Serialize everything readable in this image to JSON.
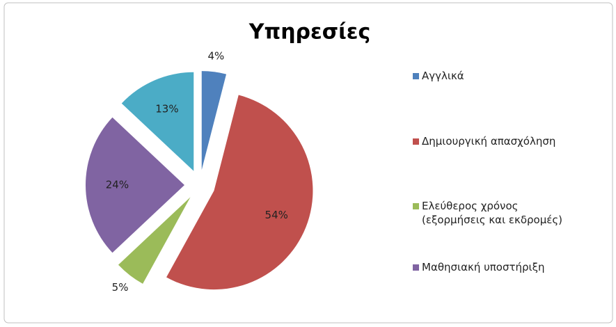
{
  "chart_data": {
    "type": "pie",
    "title": "Υπηρεσίες",
    "categories": [
      "Αγγλικά",
      "Δημιουργική απασχόληση",
      "Ελεύθερος χρόνος (εξορμήσεις και εκδρομές)",
      "Μαθησιακή υποστήριξη",
      null
    ],
    "values": [
      4,
      54,
      5,
      24,
      13
    ],
    "value_labels": [
      "4%",
      "54%",
      "5%",
      "24%",
      "13%"
    ],
    "colors": [
      "#4f81bd",
      "#c0504d",
      "#9bbb59",
      "#8064a2",
      "#4bacc6"
    ],
    "exploded": true,
    "legend": "right"
  }
}
